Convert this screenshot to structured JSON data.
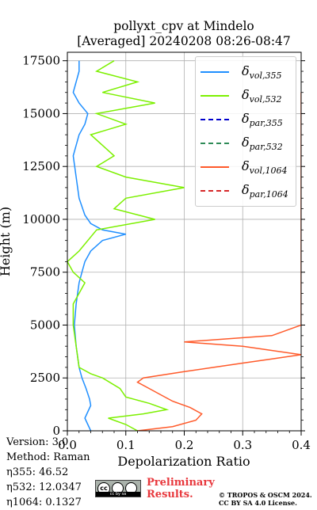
{
  "chart_data": {
    "type": "line",
    "title": "pollyxt_cpv at Mindelo",
    "subtitle": "[Averaged] 20240208 08:26-08:47",
    "xlabel": "Depolarization Ratio",
    "ylabel": "Height (m)",
    "xlim": [
      0,
      0.4
    ],
    "ylim": [
      0,
      17500
    ],
    "xticks": [
      "0.0",
      "0.1",
      "0.2",
      "0.3",
      "0.4"
    ],
    "yticks": [
      "0",
      "2500",
      "5000",
      "7500",
      "10000",
      "12500",
      "15000",
      "17500"
    ],
    "grid": true,
    "legend_position": "top-right",
    "series": [
      {
        "name_base": "δ",
        "name_sub": "vol,355",
        "color": "#1f8fff",
        "style": "solid",
        "points": [
          [
            0.04,
            0
          ],
          [
            0.035,
            300
          ],
          [
            0.03,
            600
          ],
          [
            0.035,
            900
          ],
          [
            0.04,
            1200
          ],
          [
            0.038,
            1500
          ],
          [
            0.032,
            2000
          ],
          [
            0.025,
            2500
          ],
          [
            0.02,
            3000
          ],
          [
            0.015,
            4000
          ],
          [
            0.012,
            5000
          ],
          [
            0.015,
            6000
          ],
          [
            0.02,
            7000
          ],
          [
            0.025,
            7500
          ],
          [
            0.03,
            8000
          ],
          [
            0.04,
            8500
          ],
          [
            0.06,
            9000
          ],
          [
            0.1,
            9300
          ],
          [
            0.06,
            9500
          ],
          [
            0.04,
            9800
          ],
          [
            0.03,
            10200
          ],
          [
            0.02,
            11000
          ],
          [
            0.015,
            12000
          ],
          [
            0.01,
            13000
          ],
          [
            0.02,
            14000
          ],
          [
            0.03,
            14500
          ],
          [
            0.035,
            15000
          ],
          [
            0.02,
            15500
          ],
          [
            0.01,
            16000
          ],
          [
            0.02,
            17000
          ],
          [
            0.02,
            17500
          ]
        ]
      },
      {
        "name_base": "δ",
        "name_sub": "vol,532",
        "color": "#7cf000",
        "style": "solid",
        "points": [
          [
            0.12,
            0
          ],
          [
            0.1,
            300
          ],
          [
            0.07,
            600
          ],
          [
            0.13,
            800
          ],
          [
            0.17,
            1000
          ],
          [
            0.14,
            1300
          ],
          [
            0.1,
            1600
          ],
          [
            0.09,
            2000
          ],
          [
            0.06,
            2500
          ],
          [
            0.04,
            2700
          ],
          [
            0.02,
            3000
          ],
          [
            0.015,
            4000
          ],
          [
            0.01,
            5000
          ],
          [
            0.01,
            6000
          ],
          [
            0.02,
            6500
          ],
          [
            0.03,
            7000
          ],
          [
            0.01,
            7500
          ],
          [
            0.0,
            8000
          ],
          [
            0.02,
            8500
          ],
          [
            0.05,
            9500
          ],
          [
            0.15,
            10000
          ],
          [
            0.08,
            10500
          ],
          [
            0.1,
            11000
          ],
          [
            0.2,
            11500
          ],
          [
            0.1,
            12000
          ],
          [
            0.05,
            12500
          ],
          [
            0.08,
            13000
          ],
          [
            0.04,
            14000
          ],
          [
            0.1,
            14500
          ],
          [
            0.05,
            15000
          ],
          [
            0.15,
            15500
          ],
          [
            0.06,
            16000
          ],
          [
            0.12,
            16500
          ],
          [
            0.05,
            17000
          ],
          [
            0.08,
            17500
          ]
        ]
      },
      {
        "name_base": "δ",
        "name_sub": "par,355",
        "color": "#0000cc",
        "style": "dashed",
        "points": []
      },
      {
        "name_base": "δ",
        "name_sub": "par,532",
        "color": "#2e8b57",
        "style": "dashed",
        "points": []
      },
      {
        "name_base": "δ",
        "name_sub": "vol,1064",
        "color": "#ff5a2a",
        "style": "solid",
        "points": [
          [
            0.12,
            0
          ],
          [
            0.18,
            200
          ],
          [
            0.22,
            500
          ],
          [
            0.23,
            800
          ],
          [
            0.21,
            1100
          ],
          [
            0.18,
            1400
          ],
          [
            0.16,
            1700
          ],
          [
            0.14,
            2000
          ],
          [
            0.12,
            2300
          ],
          [
            0.13,
            2500
          ],
          [
            0.2,
            2800
          ],
          [
            0.25,
            3000
          ],
          [
            0.3,
            3200
          ],
          [
            0.35,
            3400
          ],
          [
            0.4,
            3600
          ],
          [
            0.3,
            4000
          ],
          [
            0.2,
            4200
          ],
          [
            0.35,
            4500
          ],
          [
            0.4,
            5000
          ],
          [
            0.4,
            6000
          ],
          [
            0.4,
            7000
          ],
          [
            0.4,
            7800
          ],
          [
            0.4,
            13500
          ],
          [
            0.4,
            14000
          ],
          [
            0.4,
            15500
          ],
          [
            0.4,
            16000
          ]
        ]
      },
      {
        "name_base": "δ",
        "name_sub": "par,1064",
        "color": "#d62728",
        "style": "dashed",
        "points": []
      }
    ],
    "meta_lines": [
      "Version: 3.0",
      "Method: Raman",
      "η355:  46.52",
      "η532: 12.0347",
      "η1064: 0.1327"
    ]
  },
  "footer": {
    "license_badge": "cc by sa",
    "preliminary_line1": "Preliminary",
    "preliminary_line2": "Results.",
    "copyright_line1": "© TROPOS & OSCM 2024.",
    "copyright_line2": "CC BY SA 4.0 License."
  }
}
